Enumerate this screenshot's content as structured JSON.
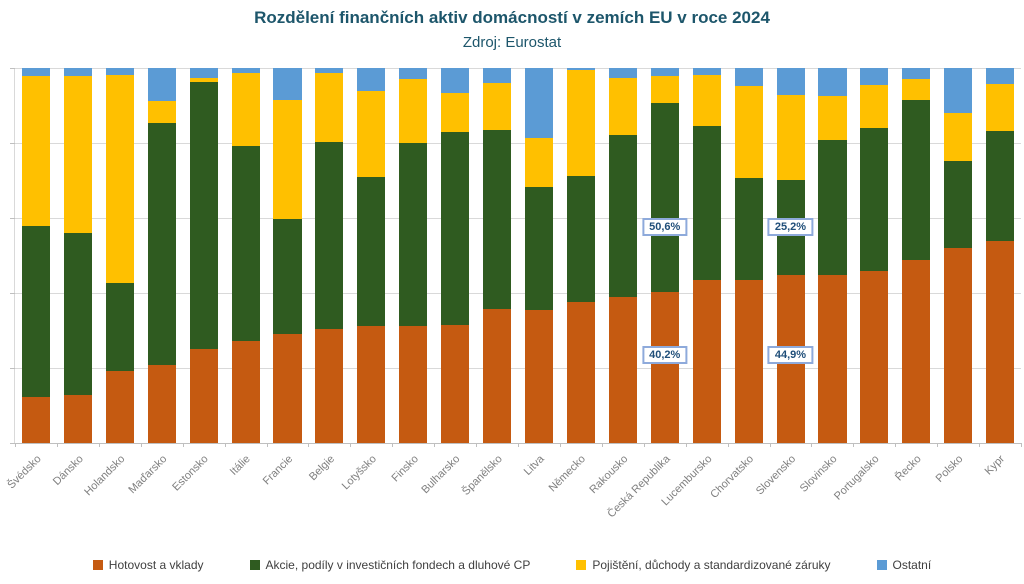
{
  "title": "Rozdělení finančních aktiv domácností v zemích EU v roce 2024",
  "subtitle": "Zdroj: Eurostat",
  "colors": {
    "cash": "#C55A11",
    "equities": "#2F5B20",
    "insurance": "#FFC000",
    "other": "#5B9BD5",
    "title_text": "#1D566B",
    "axis_label": "#7F7F7F",
    "legend_text": "#404040",
    "gridline": "#D9D9D9",
    "callout_border": "#8EAADB",
    "callout_text": "#1F4E79"
  },
  "chart_data": {
    "type": "bar",
    "stacked": true,
    "unit": "%",
    "ylim": [
      0,
      100
    ],
    "grid": true,
    "gridline_step_pct": 20,
    "legend_position": "bottom",
    "x_label_rotation_deg": 45,
    "categories": [
      "Švédsko",
      "Dánsko",
      "Holandsko",
      "Maďarsko",
      "Estonsko",
      "Itálie",
      "Francie",
      "Belgie",
      "Lotyšsko",
      "Finsko",
      "Bulharsko",
      "Španělsko",
      "Litva",
      "Německo",
      "Rakousko",
      "Česká Republika",
      "Lucembursko",
      "Chorvatsko",
      "Slovensko",
      "Slovinsko",
      "Portugalsko",
      "Řecko",
      "Polsko",
      "Kypr"
    ],
    "series": [
      {
        "name": "Hotovost a vklady",
        "color": "#C55A11",
        "values": [
          12.4,
          12.9,
          19.1,
          20.9,
          25.0,
          27.1,
          29.1,
          30.4,
          31.1,
          31.1,
          31.6,
          35.7,
          35.6,
          37.5,
          38.9,
          40.2,
          43.4,
          43.6,
          44.9,
          44.9,
          45.8,
          48.9,
          52.0,
          53.8
        ]
      },
      {
        "name": "Akcie, podíly v investičních fondech a dluhové CP",
        "color": "#2F5B20",
        "values": [
          45.5,
          43.0,
          23.7,
          64.4,
          71.3,
          52.2,
          30.7,
          50.0,
          39.8,
          48.9,
          51.3,
          47.8,
          32.7,
          33.8,
          43.3,
          50.6,
          41.2,
          27.1,
          25.2,
          36.0,
          38.2,
          42.5,
          23.2,
          29.3
        ]
      },
      {
        "name": "Pojištění, důchody a standardizované záruky",
        "color": "#FFC000",
        "values": [
          40.1,
          41.9,
          55.4,
          6.0,
          1.0,
          19.4,
          31.8,
          18.2,
          23.1,
          17.1,
          10.4,
          12.6,
          13.1,
          28.2,
          15.1,
          7.1,
          13.5,
          24.5,
          22.6,
          11.6,
          11.6,
          5.7,
          12.7,
          12.6
        ]
      },
      {
        "name": "Ostatní",
        "color": "#5B9BD5",
        "values": [
          2.0,
          2.2,
          1.8,
          8.7,
          2.7,
          1.3,
          8.4,
          1.4,
          6.0,
          2.9,
          6.7,
          3.9,
          18.6,
          0.5,
          2.7,
          2.1,
          1.9,
          4.8,
          7.3,
          7.5,
          4.4,
          2.9,
          12.1,
          4.3
        ]
      }
    ],
    "annotations": [
      {
        "text": "50,6%",
        "category": "Česká Republika",
        "category_index": 15,
        "series": "Akcie, podíly v investičních fondech a dluhové CP",
        "y_center_pct": 42.4
      },
      {
        "text": "40,2%",
        "category": "Česká Republika",
        "category_index": 15,
        "series": "Hotovost a vklady",
        "y_center_pct": 76.4
      },
      {
        "text": "25,2%",
        "category": "Slovensko",
        "category_index": 18,
        "series": "Akcie, podíly v investičních fondech a dluhové CP",
        "y_center_pct": 42.4
      },
      {
        "text": "44,9%",
        "category": "Slovensko",
        "category_index": 18,
        "series": "Hotovost a vklady",
        "y_center_pct": 76.4
      }
    ]
  }
}
